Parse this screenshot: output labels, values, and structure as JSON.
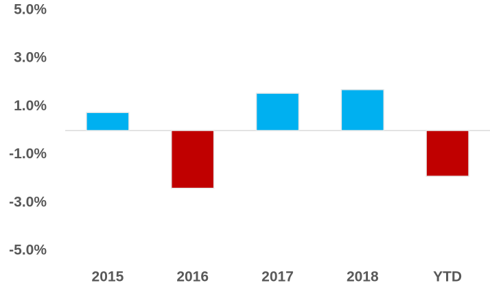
{
  "chart_data": {
    "type": "bar",
    "categories": [
      "2015",
      "2016",
      "2017",
      "2018",
      "YTD"
    ],
    "values": [
      0.75,
      -2.4,
      1.55,
      1.7,
      -1.9
    ],
    "positive_color": "#00b0f0",
    "negative_color": "#c00000",
    "ylim": [
      -5,
      5
    ],
    "yticks": [
      {
        "value": -5,
        "label": "-5.0%"
      },
      {
        "value": -3,
        "label": "-3.0%"
      },
      {
        "value": -1,
        "label": "-1.0%"
      },
      {
        "value": 1,
        "label": "1.0%"
      },
      {
        "value": 3,
        "label": "3.0%"
      },
      {
        "value": 5,
        "label": "5.0%"
      }
    ],
    "grid": false
  }
}
